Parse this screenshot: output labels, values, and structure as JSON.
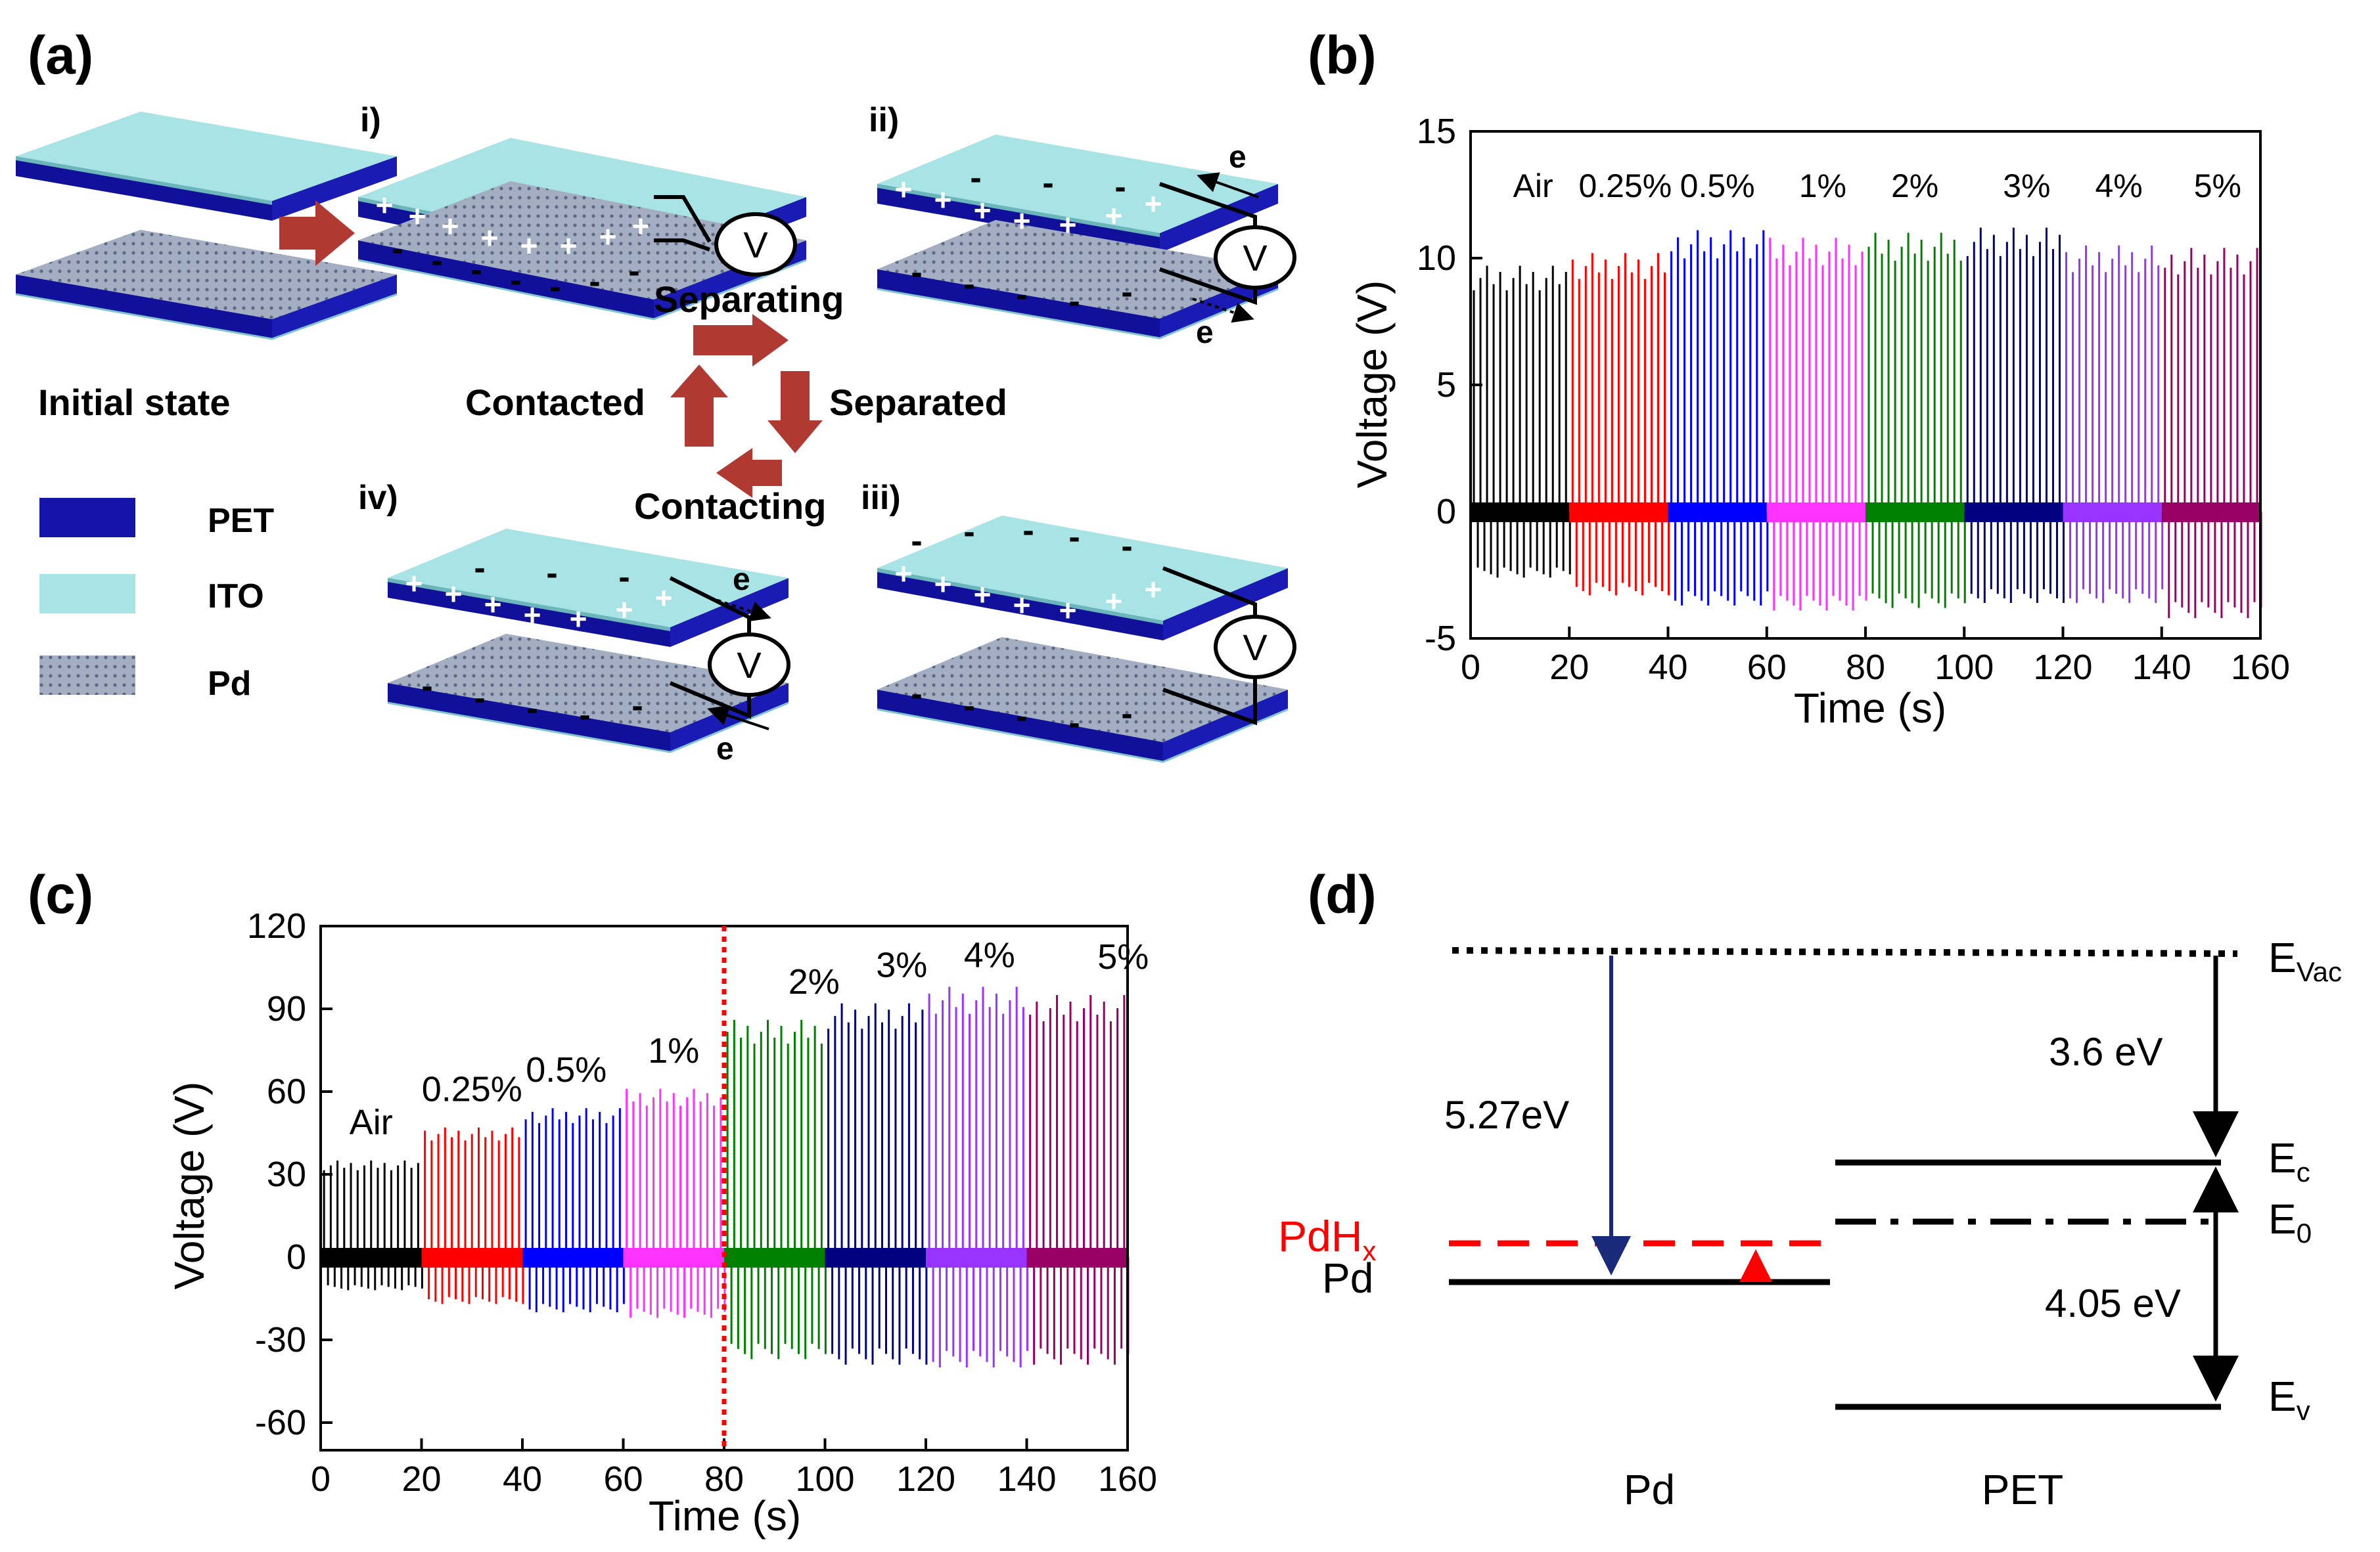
{
  "panel_labels": {
    "a": "(a)",
    "b": "(b)",
    "c": "(c)",
    "d": "(d)"
  },
  "colors": {
    "pet": "#1414a8",
    "ito": "#a8e4e6",
    "pd": "#9ea8bc",
    "arrow": "#b03a32",
    "air": "#000000",
    "c025": "#ff0000",
    "c05": "#0000ff",
    "c1": "#ff33ff",
    "c2": "#008000",
    "c3": "#000080",
    "c4": "#9933ff",
    "c5": "#990066",
    "ev_arrow": "#1a2a7a",
    "pdhx": "#ff0000"
  },
  "panel_a": {
    "steps": {
      "i": "i)",
      "ii": "ii)",
      "iii": "iii)",
      "iv": "iv)"
    },
    "initial_state": "Initial state",
    "cycle": {
      "separating": "Separating",
      "separated": "Separated",
      "contacting": "Contacting",
      "contacted": "Contacted"
    },
    "legend": [
      {
        "label": "PET",
        "color_key": "pet"
      },
      {
        "label": "ITO",
        "color_key": "ito"
      },
      {
        "label": "Pd",
        "color_key": "pd"
      }
    ],
    "meter_label": "V",
    "electron_label": "e",
    "plus_sign": "+",
    "minus_sign": "-"
  },
  "chart_data": [
    {
      "panel": "b",
      "type": "line",
      "xlabel": "Time (s)",
      "ylabel": "Voltage (V)",
      "xlim": [
        0,
        160
      ],
      "ylim": [
        -5,
        15
      ],
      "xticks": [
        0,
        20,
        40,
        60,
        80,
        100,
        120,
        140,
        160
      ],
      "yticks": [
        -5,
        0,
        5,
        10,
        15
      ],
      "series": [
        {
          "name": "Air",
          "color_key": "air",
          "x_range": [
            0,
            20
          ],
          "peak_max": 9.7,
          "peak_min": -2.6
        },
        {
          "name": "0.25%",
          "color_key": "c025",
          "x_range": [
            20,
            40
          ],
          "peak_max": 10.2,
          "peak_min": -3.3
        },
        {
          "name": "0.5%",
          "color_key": "c05",
          "x_range": [
            40,
            60
          ],
          "peak_max": 11.1,
          "peak_min": -3.7
        },
        {
          "name": "1%",
          "color_key": "c1",
          "x_range": [
            60,
            80
          ],
          "peak_max": 10.8,
          "peak_min": -3.9
        },
        {
          "name": "2%",
          "color_key": "c2",
          "x_range": [
            80,
            100
          ],
          "peak_max": 11.0,
          "peak_min": -3.8
        },
        {
          "name": "3%",
          "color_key": "c3",
          "x_range": [
            100,
            120
          ],
          "peak_max": 11.2,
          "peak_min": -3.6
        },
        {
          "name": "4%",
          "color_key": "c4",
          "x_range": [
            120,
            140
          ],
          "peak_max": 10.5,
          "peak_min": -3.6
        },
        {
          "name": "5%",
          "color_key": "c5",
          "x_range": [
            140,
            160
          ],
          "peak_max": 10.4,
          "peak_min": -4.2
        }
      ]
    },
    {
      "panel": "c",
      "type": "line",
      "xlabel": "Time (s)",
      "ylabel": "Voltage (V)",
      "xlim": [
        0,
        160
      ],
      "ylim": [
        -70,
        120
      ],
      "xticks": [
        0,
        20,
        40,
        60,
        80,
        100,
        120,
        140,
        160
      ],
      "yticks": [
        -60,
        -30,
        0,
        30,
        60,
        90,
        120
      ],
      "marker_line_x": 80,
      "series": [
        {
          "name": "Air",
          "color_key": "air",
          "x_range": [
            0,
            20
          ],
          "peak_max": 35,
          "peak_min": -12
        },
        {
          "name": "0.25%",
          "color_key": "c025",
          "x_range": [
            20,
            40
          ],
          "peak_max": 47,
          "peak_min": -17
        },
        {
          "name": "0.5%",
          "color_key": "c05",
          "x_range": [
            40,
            60
          ],
          "peak_max": 54,
          "peak_min": -20
        },
        {
          "name": "1%",
          "color_key": "c1",
          "x_range": [
            60,
            80
          ],
          "peak_max": 61,
          "peak_min": -22
        },
        {
          "name": "2%",
          "color_key": "c2",
          "x_range": [
            80,
            100
          ],
          "peak_max": 86,
          "peak_min": -37
        },
        {
          "name": "3%",
          "color_key": "c3",
          "x_range": [
            100,
            120
          ],
          "peak_max": 92,
          "peak_min": -39
        },
        {
          "name": "4%",
          "color_key": "c4",
          "x_range": [
            120,
            140
          ],
          "peak_max": 98,
          "peak_min": -40
        },
        {
          "name": "5%",
          "color_key": "c5",
          "x_range": [
            140,
            160
          ],
          "peak_max": 95,
          "peak_min": -39
        }
      ]
    }
  ],
  "panel_d": {
    "e_vac": "E",
    "e_vac_sub": "Vac",
    "e_c": "E",
    "e_c_sub": "c",
    "e_0": "E",
    "e_0_sub": "0",
    "e_v": "E",
    "e_v_sub": "v",
    "pdhx": "PdH",
    "pdhx_sub": "x",
    "pd_level": "Pd",
    "work_function": "5.27eV",
    "electron_affinity": "3.6 eV",
    "band_gap": "4.05 eV",
    "bottom_pd": "Pd",
    "bottom_pet": "PET"
  }
}
